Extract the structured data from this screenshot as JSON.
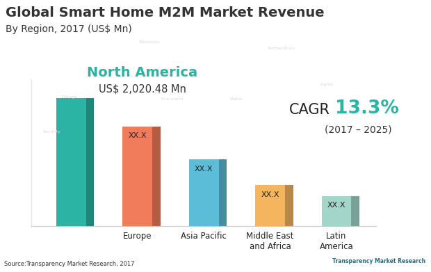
{
  "chart_data": {
    "type": "bar",
    "title": "Global Smart Home M2M Market Revenue",
    "subtitle": "By Region, 2017 (US$ Mn)",
    "categories": [
      null,
      "Europe",
      "Asia Pacific",
      "Middle East and Africa",
      "Latin America"
    ],
    "values": [
      2020.48,
      1570,
      1045,
      640,
      470
    ],
    "colors": [
      "#2bb3a3",
      "#f17c5b",
      "#5cbdd8",
      "#f5b55e",
      "#a3d6cb"
    ],
    "ylim": [
      0,
      2300
    ],
    "tick_labels": "x",
    "bar_texts": [
      null,
      "XX.X",
      "XX.X",
      "XX.X",
      "XX.X"
    ],
    "highlight": {
      "label": "North America",
      "value_text": "US$ 2,020.48 Mn"
    },
    "cagr": {
      "label": "CAGR",
      "value": "13.3%",
      "period": "(2017 – 2025)"
    },
    "source": "Source:Transparency Market Research, 2017",
    "logo": "Transparency Market Research",
    "background_labels": [
      "Television",
      "Temperature",
      "Garage",
      "Fire alarm",
      "Water",
      "Lights",
      "Security"
    ]
  }
}
